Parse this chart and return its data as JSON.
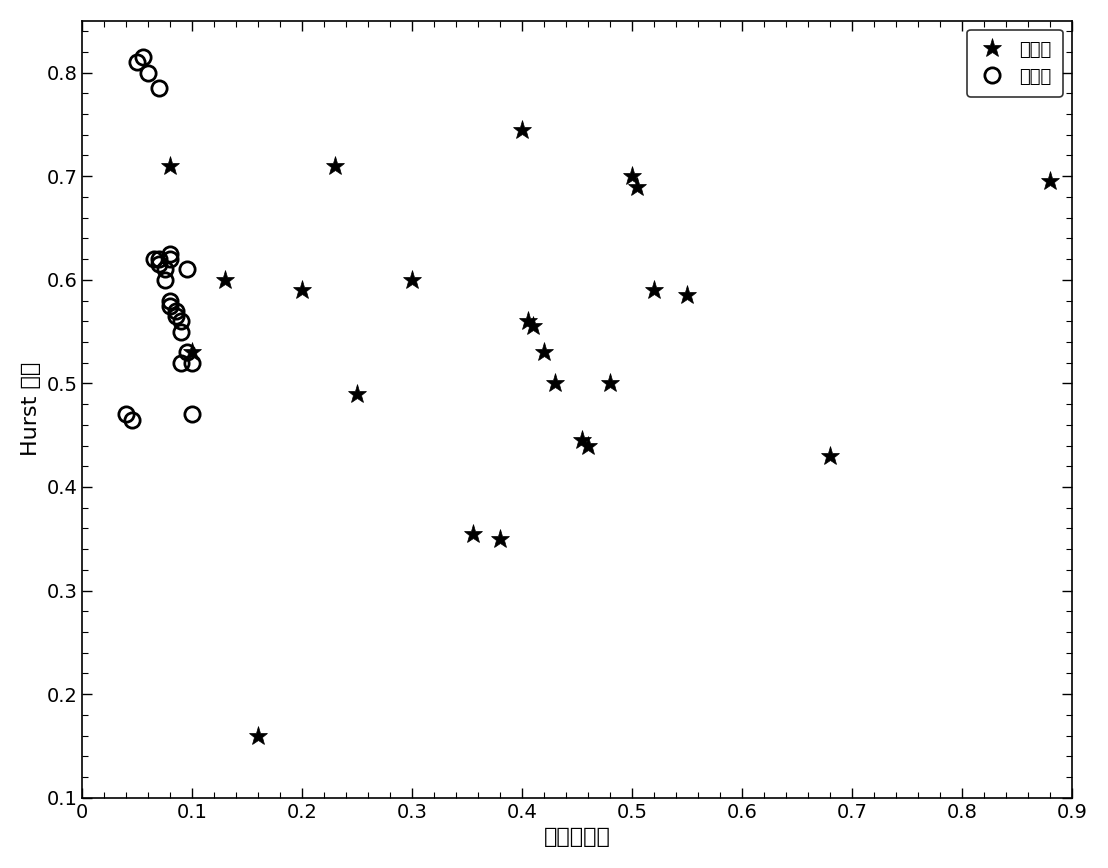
{
  "defect_x": [
    0.08,
    0.23,
    0.16,
    0.1,
    0.13,
    0.2,
    0.25,
    0.3,
    0.355,
    0.38,
    0.4,
    0.405,
    0.41,
    0.42,
    0.43,
    0.455,
    0.46,
    0.48,
    0.5,
    0.505,
    0.52,
    0.55,
    0.68,
    0.88
  ],
  "defect_y": [
    0.71,
    0.71,
    0.16,
    0.53,
    0.6,
    0.59,
    0.49,
    0.6,
    0.355,
    0.35,
    0.745,
    0.56,
    0.555,
    0.53,
    0.5,
    0.445,
    0.44,
    0.5,
    0.7,
    0.69,
    0.59,
    0.585,
    0.43,
    0.695
  ],
  "nodefect_x": [
    0.04,
    0.045,
    0.05,
    0.055,
    0.06,
    0.065,
    0.07,
    0.07,
    0.075,
    0.075,
    0.08,
    0.08,
    0.08,
    0.085,
    0.085,
    0.09,
    0.09,
    0.09,
    0.095,
    0.095,
    0.1,
    0.1,
    0.07,
    0.08
  ],
  "nodefect_y": [
    0.47,
    0.465,
    0.81,
    0.815,
    0.8,
    0.62,
    0.62,
    0.615,
    0.6,
    0.61,
    0.625,
    0.58,
    0.575,
    0.57,
    0.565,
    0.56,
    0.55,
    0.52,
    0.61,
    0.53,
    0.52,
    0.47,
    0.785,
    0.62
  ],
  "xlabel": "分形线性度",
  "ylabel": "Hurst 指数",
  "xlim": [
    0,
    0.9
  ],
  "ylim": [
    0.1,
    0.85
  ],
  "xticks": [
    0,
    0.1,
    0.2,
    0.3,
    0.4,
    0.5,
    0.6,
    0.7,
    0.8,
    0.9
  ],
  "yticks": [
    0.1,
    0.2,
    0.3,
    0.4,
    0.5,
    0.6,
    0.7,
    0.8
  ],
  "xtick_labels": [
    "0",
    "0.1",
    "0.2",
    "0.3",
    "0.4",
    "0.5",
    "0.6",
    "0.7",
    "0.8",
    "0.9"
  ],
  "ytick_labels": [
    "0.1",
    "0.2",
    "0.3",
    "0.4",
    "0.5",
    "0.6",
    "0.7",
    "0.8"
  ],
  "legend_defect": "有缺陷",
  "legend_nodefect": "无缺陷",
  "color": "black",
  "bg_color": "white",
  "figwidth": 11.08,
  "figheight": 8.68,
  "dpi": 100
}
